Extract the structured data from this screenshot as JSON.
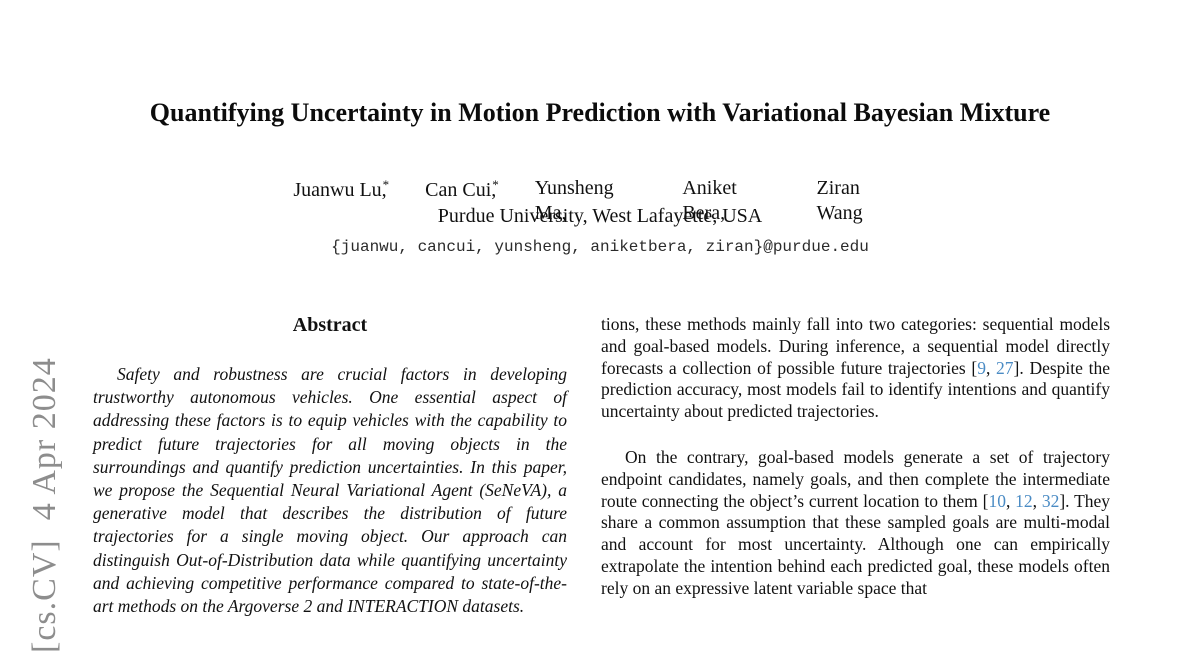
{
  "arxiv_stamp": "[cs.CV]  4 Apr 2024",
  "title": "Quantifying Uncertainty in Motion Prediction with Variational Bayesian Mixture",
  "authors": [
    {
      "name": "Juanwu Lu,",
      "mark": "*"
    },
    {
      "name": "Can Cui,",
      "mark": "*"
    },
    {
      "name": "Yunsheng Ma,",
      "mark": ""
    },
    {
      "name": "Aniket Bera,",
      "mark": ""
    },
    {
      "name": "Ziran Wang",
      "mark": ""
    }
  ],
  "affiliation": "Purdue University, West Lafayette, USA",
  "email": "{juanwu, cancui, yunsheng, aniketbera, ziran}@purdue.edu",
  "abstract": {
    "heading": "Abstract",
    "text": "Safety and robustness are crucial factors in developing trustworthy autonomous vehicles. One essential aspect of addressing these factors is to equip vehicles with the capability to predict future trajectories for all moving objects in the surroundings and quantify prediction uncertainties. In this paper, we propose the Sequential Neural Variational Agent (SeNeVA), a generative model that describes the distribution of future trajectories for a single moving object. Our approach can distinguish Out-of-Distribution data while quantifying uncertainty and achieving competitive performance compared to state-of-the-art methods on the Argoverse 2 and INTERACTION datasets."
  },
  "right_column": {
    "para1": {
      "pre": "tions, these methods mainly fall into two categories: sequential models and goal-based models. During inference, a sequential model directly forecasts a collection of possible future trajectories [",
      "cite1": "9",
      "sep1": ", ",
      "cite2": "27",
      "post": "]. Despite the prediction accuracy, most models fail to identify intentions and quantify uncertainty about predicted trajectories."
    },
    "para2": {
      "pre": "On the contrary, goal-based models generate a set of trajectory endpoint candidates, namely goals, and then complete the intermediate route connecting the object’s current location to them [",
      "cite1": "10",
      "sep1": ", ",
      "cite2": "12",
      "sep2": ", ",
      "cite3": "32",
      "post": "]. They share a common assumption that these sampled goals are multi-modal and account for most uncertainty. Although one can empirically extrapolate the intention behind each predicted goal, these models often rely on an expressive latent variable space that"
    }
  },
  "colors": {
    "citation": "#4a8bc4",
    "stamp_gray": "#8d8d8d",
    "text": "#111111"
  }
}
